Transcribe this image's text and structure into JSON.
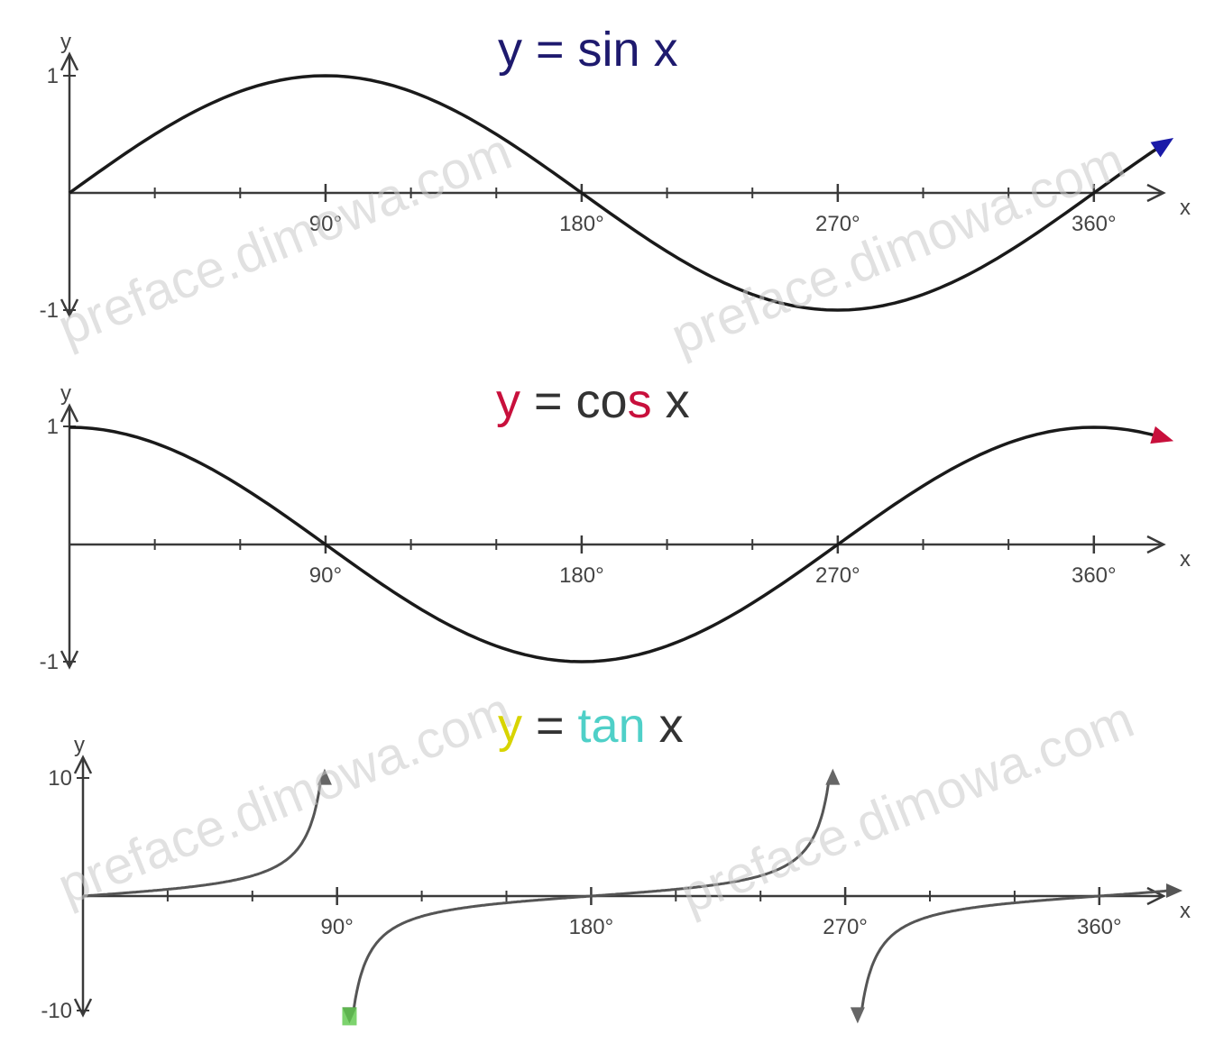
{
  "watermark": "preface.dimowa.com",
  "colors": {
    "axis": "#3a3a3a",
    "curve": "#1a1a1a",
    "sin_title": "#1e1a6e",
    "cos_y": "#c8103c",
    "cos_rest": "#333333",
    "cos_s": "#c8103c",
    "tan_y": "#d8d400",
    "tan_word": "#4fd0c8",
    "tan_x": "#333333",
    "sin_arrow": "#1a1aa8",
    "cos_arrow": "#c8103c",
    "tan_marker": "#5cc84a"
  },
  "chart_data": [
    {
      "type": "line",
      "title_parts": [
        "y = sin x"
      ],
      "function": "sin",
      "xlabel": "x",
      "ylabel": "y",
      "xlim": [
        0,
        390
      ],
      "ylim": [
        -1,
        1
      ],
      "x_ticks": [
        90,
        180,
        270,
        360
      ],
      "x_tick_labels": [
        "90°",
        "180°",
        "270°",
        "360°"
      ],
      "y_tick_labels": [
        "1",
        "-1"
      ],
      "series": [
        {
          "x": [
            0,
            30,
            60,
            90,
            120,
            150,
            180,
            210,
            240,
            270,
            300,
            330,
            360,
            390
          ],
          "values": [
            0,
            0.5,
            0.87,
            1,
            0.87,
            0.5,
            0,
            -0.5,
            -0.87,
            -1,
            -0.87,
            -0.5,
            0,
            0.5
          ]
        }
      ]
    },
    {
      "type": "line",
      "title_parts": [
        "y",
        " = co",
        "s",
        " x"
      ],
      "function": "cos",
      "xlabel": "x",
      "ylabel": "y",
      "xlim": [
        0,
        390
      ],
      "ylim": [
        -1,
        1
      ],
      "x_ticks": [
        90,
        180,
        270,
        360
      ],
      "x_tick_labels": [
        "90°",
        "180°",
        "270°",
        "360°"
      ],
      "y_tick_labels": [
        "1",
        "-1"
      ],
      "series": [
        {
          "x": [
            0,
            30,
            60,
            90,
            120,
            150,
            180,
            210,
            240,
            270,
            300,
            330,
            360,
            390
          ],
          "values": [
            1,
            0.87,
            0.5,
            0,
            -0.5,
            -0.87,
            -1,
            -0.87,
            -0.5,
            0,
            0.5,
            0.87,
            1,
            0.87
          ]
        }
      ]
    },
    {
      "type": "line",
      "title_parts": [
        "y",
        " = ",
        "tan",
        " x"
      ],
      "function": "tan",
      "xlabel": "x",
      "ylabel": "y",
      "xlim": [
        0,
        390
      ],
      "ylim": [
        -10,
        10
      ],
      "x_ticks": [
        90,
        180,
        270,
        360
      ],
      "x_tick_labels": [
        "90°",
        "180°",
        "270°",
        "360°"
      ],
      "y_tick_labels": [
        "10",
        "-10"
      ],
      "series": [
        {
          "x": [
            0,
            30,
            45,
            60,
            75,
            84,
            96,
            105,
            120,
            135,
            150,
            180,
            210,
            225,
            240,
            255,
            264,
            276,
            285,
            300,
            315,
            330,
            360,
            390
          ],
          "values": [
            0,
            0.58,
            1,
            1.73,
            3.73,
            9.5,
            -9.5,
            -3.73,
            -1.73,
            -1,
            -0.58,
            0,
            0.58,
            1,
            1.73,
            3.73,
            9.5,
            -9.5,
            -3.73,
            -1.73,
            -1,
            -0.58,
            0,
            0.58
          ]
        }
      ]
    }
  ]
}
